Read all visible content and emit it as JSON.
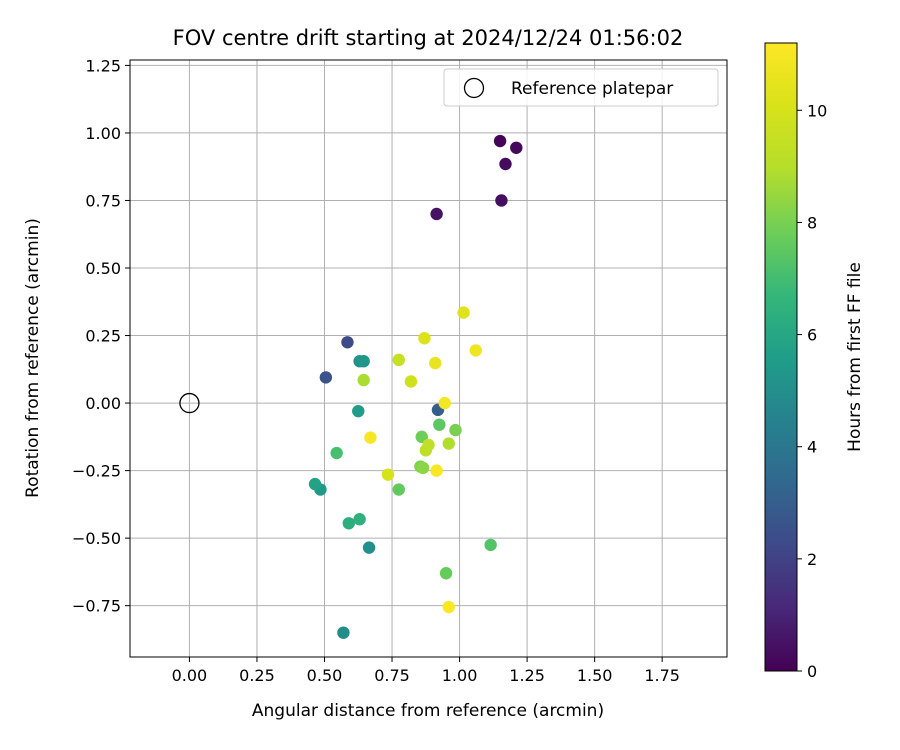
{
  "chart_data": {
    "type": "scatter",
    "title": "FOV centre drift starting at 2024/12/24 01:56:02",
    "xlabel": "Angular distance from reference (arcmin)",
    "ylabel": "Rotation from reference (arcmin)",
    "xlim": [
      -0.22,
      1.99
    ],
    "ylim": [
      -0.94,
      1.27
    ],
    "xticks": [
      0.0,
      0.25,
      0.5,
      0.75,
      1.0,
      1.25,
      1.5,
      1.75
    ],
    "xtick_labels": [
      "0.00",
      "0.25",
      "0.50",
      "0.75",
      "1.00",
      "1.25",
      "1.50",
      "1.75"
    ],
    "yticks": [
      -0.75,
      -0.5,
      -0.25,
      0.0,
      0.25,
      0.5,
      0.75,
      1.0,
      1.25
    ],
    "ytick_labels": [
      "−0.75",
      "−0.50",
      "−0.25",
      "0.00",
      "0.25",
      "0.50",
      "0.75",
      "1.00",
      "1.25"
    ],
    "grid": true,
    "legend": {
      "placement": "top-right",
      "entries": [
        "Reference platepar"
      ]
    },
    "reference_point": {
      "x": 0.0,
      "y": 0.0,
      "marker": "open-circle"
    },
    "colorbar": {
      "label": "Hours from first FF file",
      "colormap": "viridis",
      "range": [
        0,
        11.2
      ],
      "ticks": [
        0,
        2,
        4,
        6,
        8,
        10
      ],
      "tick_labels": [
        "0",
        "2",
        "4",
        "6",
        "8",
        "10"
      ]
    },
    "points": [
      {
        "x": 1.15,
        "y": 0.97,
        "c": 0.1
      },
      {
        "x": 1.21,
        "y": 0.945,
        "c": 0.2
      },
      {
        "x": 1.17,
        "y": 0.885,
        "c": 0.3
      },
      {
        "x": 1.155,
        "y": 0.75,
        "c": 0.4
      },
      {
        "x": 0.915,
        "y": 0.7,
        "c": 0.5
      },
      {
        "x": 0.585,
        "y": 0.225,
        "c": 2.3
      },
      {
        "x": 0.505,
        "y": 0.095,
        "c": 2.6
      },
      {
        "x": 0.92,
        "y": -0.025,
        "c": 3.0
      },
      {
        "x": 0.57,
        "y": -0.85,
        "c": 4.9
      },
      {
        "x": 0.665,
        "y": -0.535,
        "c": 5.0
      },
      {
        "x": 0.63,
        "y": 0.155,
        "c": 5.1
      },
      {
        "x": 0.645,
        "y": 0.155,
        "c": 5.3
      },
      {
        "x": 0.625,
        "y": -0.03,
        "c": 5.5
      },
      {
        "x": 0.485,
        "y": -0.32,
        "c": 5.4
      },
      {
        "x": 0.465,
        "y": -0.3,
        "c": 5.8
      },
      {
        "x": 0.59,
        "y": -0.445,
        "c": 6.3
      },
      {
        "x": 0.63,
        "y": -0.43,
        "c": 6.4
      },
      {
        "x": 0.545,
        "y": -0.185,
        "c": 7.1
      },
      {
        "x": 1.115,
        "y": -0.525,
        "c": 7.3
      },
      {
        "x": 0.925,
        "y": -0.08,
        "c": 7.5
      },
      {
        "x": 0.775,
        "y": -0.32,
        "c": 7.6
      },
      {
        "x": 0.95,
        "y": -0.63,
        "c": 7.7
      },
      {
        "x": 0.86,
        "y": -0.125,
        "c": 7.8
      },
      {
        "x": 0.985,
        "y": -0.1,
        "c": 8.0
      },
      {
        "x": 0.855,
        "y": -0.235,
        "c": 8.1
      },
      {
        "x": 0.865,
        "y": -0.24,
        "c": 8.3
      },
      {
        "x": 0.645,
        "y": 0.085,
        "c": 8.8
      },
      {
        "x": 0.96,
        "y": -0.15,
        "c": 8.9
      },
      {
        "x": 0.875,
        "y": -0.175,
        "c": 9.2
      },
      {
        "x": 0.885,
        "y": -0.155,
        "c": 9.3
      },
      {
        "x": 0.775,
        "y": 0.16,
        "c": 9.5
      },
      {
        "x": 0.82,
        "y": 0.08,
        "c": 9.8
      },
      {
        "x": 0.735,
        "y": -0.265,
        "c": 10.0
      },
      {
        "x": 0.87,
        "y": 0.24,
        "c": 10.2
      },
      {
        "x": 1.015,
        "y": 0.335,
        "c": 10.3
      },
      {
        "x": 0.91,
        "y": 0.148,
        "c": 10.6
      },
      {
        "x": 1.06,
        "y": 0.195,
        "c": 10.8
      },
      {
        "x": 0.945,
        "y": 0.0,
        "c": 10.9
      },
      {
        "x": 0.67,
        "y": -0.128,
        "c": 11.0
      },
      {
        "x": 0.915,
        "y": -0.25,
        "c": 11.1
      },
      {
        "x": 0.96,
        "y": -0.755,
        "c": 11.2
      }
    ]
  }
}
